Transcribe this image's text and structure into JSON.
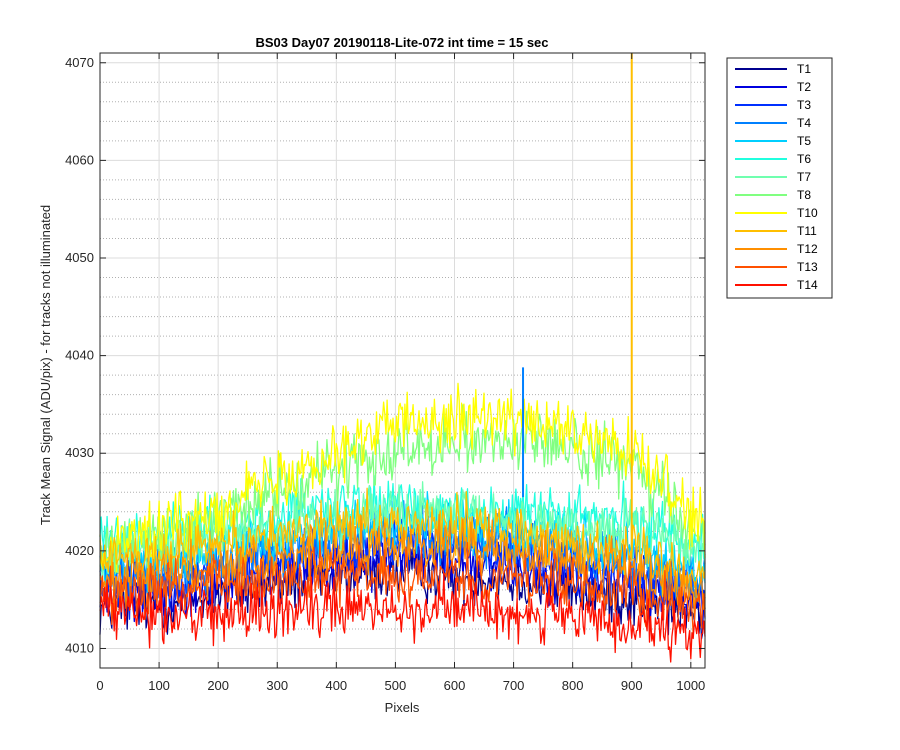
{
  "chart_data": {
    "type": "line",
    "title": "BS03 Day07 20190118-Lite-072 int time = 15 sec",
    "xlabel": "Pixels",
    "ylabel": "Track Mean Signal (ADU/pix) - for tracks not illuminated",
    "xlim": [
      0,
      1024
    ],
    "ylim": [
      4008,
      4071
    ],
    "xticks": [
      0,
      100,
      200,
      300,
      400,
      500,
      600,
      700,
      800,
      900,
      1000
    ],
    "yticks": [
      4010,
      4020,
      4030,
      4040,
      4050,
      4060,
      4070
    ],
    "grid": true,
    "minor_grid": true,
    "legend_position": "outside-right",
    "x": [
      0,
      100,
      200,
      300,
      400,
      500,
      600,
      700,
      800,
      900,
      1024
    ],
    "series": [
      {
        "name": "T1",
        "color": "#00008f",
        "values": [
          4014,
          4014.5,
          4015.5,
          4016.5,
          4017.3,
          4017.8,
          4017.5,
          4017,
          4016,
          4015,
          4013.5
        ],
        "noise": 2.0
      },
      {
        "name": "T2",
        "color": "#0000df",
        "values": [
          4015.5,
          4016,
          4017,
          4018,
          4019,
          4019.5,
          4019.3,
          4018.6,
          4017.6,
          4016.6,
          4015
        ],
        "noise": 2.0
      },
      {
        "name": "T3",
        "color": "#0030ff",
        "values": [
          4016.5,
          4017,
          4018,
          4019.2,
          4020.3,
          4020.8,
          4020.5,
          4019.8,
          4018.8,
          4017.8,
          4016
        ],
        "noise": 2.0
      },
      {
        "name": "T4",
        "color": "#0080ff",
        "values": [
          4017.5,
          4018,
          4019,
          4020.5,
          4021.5,
          4022,
          4021.8,
          4021,
          4020,
          4019,
          4017
        ],
        "noise": 2.0
      },
      {
        "name": "T5",
        "color": "#00cfff",
        "values": [
          4018.5,
          4019,
          4020,
          4021.5,
          4022.5,
          4023,
          4022.8,
          4022,
          4021,
          4020,
          4018
        ],
        "noise": 2.0
      },
      {
        "name": "T6",
        "color": "#20ffdf",
        "values": [
          4021,
          4021.5,
          4022.5,
          4023.5,
          4024.3,
          4024.8,
          4024.6,
          4024,
          4023.5,
          4023,
          4021
        ],
        "noise": 2.0
      },
      {
        "name": "T7",
        "color": "#70ffaf",
        "values": [
          4020,
          4020.5,
          4021.5,
          4022.5,
          4023.3,
          4023.8,
          4023.6,
          4023,
          4022.5,
          4022,
          4020
        ],
        "noise": 2.0
      },
      {
        "name": "T8",
        "color": "#80ff80",
        "values": [
          4020,
          4021,
          4023.5,
          4026,
          4028.5,
          4030.5,
          4031.5,
          4031.5,
          4030.5,
          4028.5,
          4021
        ],
        "noise": 2.2
      },
      {
        "name": "T10",
        "color": "#ffff00",
        "values": [
          4021,
          4022,
          4024.5,
          4027.5,
          4030.5,
          4033,
          4034,
          4033.5,
          4032,
          4030,
          4022
        ],
        "noise": 2.2
      },
      {
        "name": "T11",
        "color": "#ffbf00",
        "values": [
          4019,
          4019.5,
          4020.5,
          4021.5,
          4022.5,
          4023,
          4022.8,
          4022,
          4021,
          4020,
          4017.5
        ],
        "noise": 2.0
      },
      {
        "name": "T12",
        "color": "#ff8f00",
        "values": [
          4017,
          4017.5,
          4018.5,
          4019.3,
          4020,
          4020.5,
          4020.3,
          4019.8,
          4019,
          4018,
          4015.5
        ],
        "noise": 2.0
      },
      {
        "name": "T13",
        "color": "#ff5000",
        "values": [
          4016,
          4016,
          4016.5,
          4017,
          4017.5,
          4017.8,
          4017.6,
          4017.2,
          4016.5,
          4015.5,
          4013.5
        ],
        "noise": 2.0
      },
      {
        "name": "T14",
        "color": "#ff1000",
        "values": [
          4014.5,
          4013.5,
          4013.5,
          4013.8,
          4014,
          4014.3,
          4014.2,
          4013.8,
          4013,
          4012,
          4011
        ],
        "noise": 2.0
      }
    ],
    "spikes": [
      {
        "series": "T4",
        "x": 716,
        "y_from": 4025.5,
        "y_to": 4038.8
      },
      {
        "series": "T11",
        "x": 900,
        "y_from": 4020,
        "y_to": 4071
      }
    ]
  }
}
